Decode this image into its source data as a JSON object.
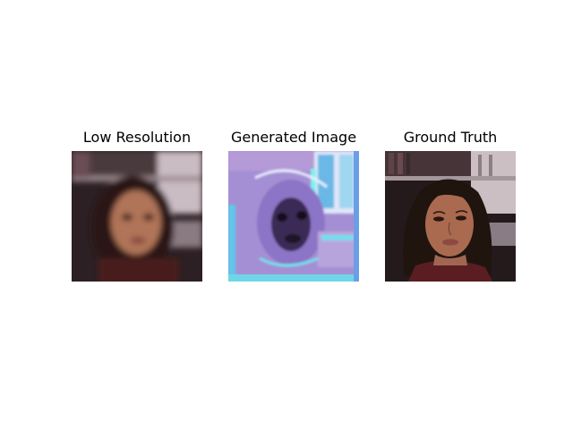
{
  "figure": {
    "panels": [
      {
        "title": "Low Resolution",
        "kind": "blurred-portrait"
      },
      {
        "title": "Generated Image",
        "kind": "artifact-portrait"
      },
      {
        "title": "Ground Truth",
        "kind": "sharp-portrait"
      }
    ]
  },
  "colors": {
    "background": "#ffffff",
    "shelf_dark": "#3a2a2a",
    "shelf_light": "#c8bcc0",
    "skin": "#a86a52",
    "hair": "#2a1a14",
    "sweater": "#5a1e22",
    "generated_lilac": "#a98fd6",
    "generated_cyan": "#7fe8f0"
  }
}
